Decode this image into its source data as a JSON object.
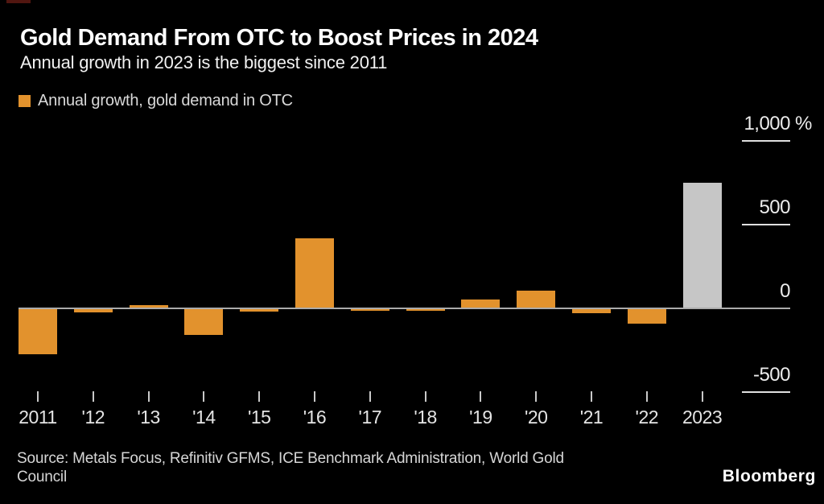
{
  "header": {
    "title": "Gold Demand From OTC to Boost Prices in 2024",
    "subtitle": "Annual growth in 2023 is the biggest since 2011"
  },
  "legend": {
    "label": "Annual growth, gold demand in OTC",
    "swatch_color": "#E2922D"
  },
  "chart_data": {
    "type": "bar",
    "title": "Gold Demand From OTC to Boost Prices in 2024",
    "subtitle": "Annual growth in 2023 is the biggest since 2011",
    "series_name": "Annual growth, gold demand in OTC",
    "categories": [
      "2011",
      "'12",
      "'13",
      "'14",
      "'15",
      "'16",
      "'17",
      "'18",
      "'19",
      "'20",
      "'21",
      "'22",
      "2023"
    ],
    "values": [
      -275,
      -25,
      20,
      -160,
      -20,
      420,
      -15,
      -15,
      55,
      105,
      -30,
      -90,
      750
    ],
    "unit": "%",
    "highlight_index": 12,
    "colors": {
      "default": "#E2922D",
      "highlight": "#C6C6C6"
    },
    "y_axis": {
      "ticks": [
        1000,
        500,
        0,
        -500
      ],
      "tick_labels": [
        "1,000",
        "500",
        "0",
        "-500"
      ],
      "unit": "%",
      "ylim": [
        -550,
        1100
      ],
      "grid": "right-side tick marks only",
      "zero_baseline": true
    },
    "legend_position": "top-left",
    "xlabel": "",
    "ylabel": ""
  },
  "footer": {
    "source": "Source: Metals Focus, Refinitiv GFMS, ICE Benchmark Administration, World Gold Council",
    "brand": "Bloomberg"
  }
}
